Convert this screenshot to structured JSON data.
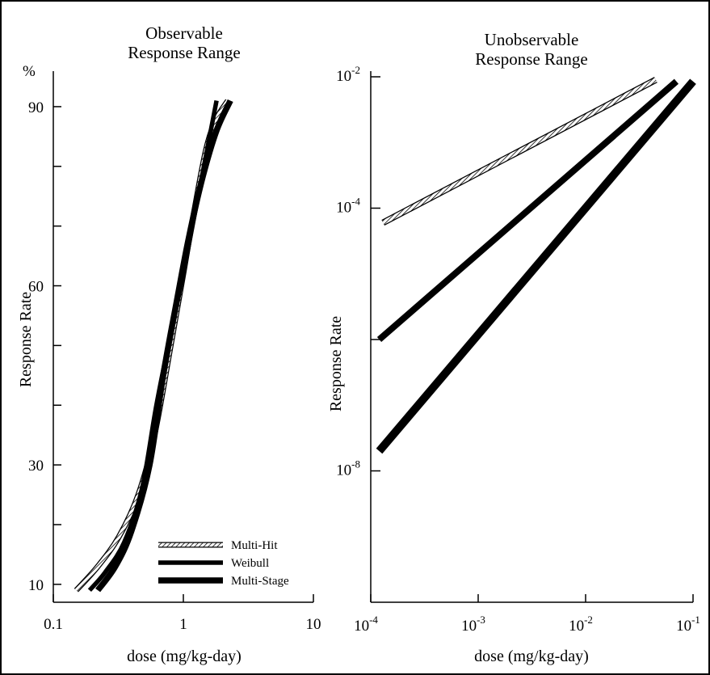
{
  "chart_data": [
    {
      "type": "line",
      "title": "Observable Response Range",
      "title_lines": [
        "Observable",
        "Response Range"
      ],
      "xlabel": "dose (mg/kg-day)",
      "ylabel": "Response Rate",
      "yunit": "%",
      "xscale": "log",
      "xlim": [
        0.1,
        10
      ],
      "ylim": [
        7,
        95
      ],
      "x_ticks": [
        "0.1",
        "1",
        "10"
      ],
      "y_ticks": [
        "10",
        "30",
        "60",
        "90"
      ],
      "legend_position": "bottom-right",
      "series": [
        {
          "name": "Multi-Hit",
          "style": "hatched",
          "points": [
            [
              0.15,
              9
            ],
            [
              0.22,
              13
            ],
            [
              0.32,
              18
            ],
            [
              0.45,
              25
            ],
            [
              0.6,
              35
            ],
            [
              0.8,
              50
            ],
            [
              1.0,
              62
            ],
            [
              1.2,
              72
            ],
            [
              1.5,
              83
            ],
            [
              1.8,
              88
            ],
            [
              2.2,
              91
            ]
          ]
        },
        {
          "name": "Weibull",
          "style": "solid",
          "points": [
            [
              0.19,
              9
            ],
            [
              0.25,
              12
            ],
            [
              0.35,
              17
            ],
            [
              0.48,
              26
            ],
            [
              0.62,
              40
            ],
            [
              0.8,
              52
            ],
            [
              1.0,
              62
            ],
            [
              1.3,
              75
            ],
            [
              1.8,
              91
            ]
          ]
        },
        {
          "name": "Multi-Stage",
          "style": "solid-heavy",
          "points": [
            [
              0.22,
              9
            ],
            [
              0.3,
              13
            ],
            [
              0.4,
              19
            ],
            [
              0.55,
              30
            ],
            [
              0.7,
              45
            ],
            [
              0.9,
              58
            ],
            [
              1.1,
              68
            ],
            [
              1.4,
              78
            ],
            [
              1.8,
              86
            ],
            [
              2.3,
              91
            ]
          ]
        }
      ],
      "legend": [
        "Multi-Hit",
        "Weibull",
        "Multi-Stage"
      ]
    },
    {
      "type": "line",
      "title": "Unobservable Response Range",
      "title_lines": [
        "Unobservable",
        "Response Range"
      ],
      "xlabel": "dose (mg/kg-day)",
      "ylabel": "Response Rate",
      "xscale": "log",
      "yscale": "log",
      "xlim": [
        0.0001,
        0.1
      ],
      "ylim": [
        1e-10,
        0.01
      ],
      "x_ticks": [
        {
          "base": "10",
          "exp": "-4"
        },
        {
          "base": "10",
          "exp": "-3"
        },
        {
          "base": "10",
          "exp": "-2"
        },
        {
          "base": "10",
          "exp": "-1"
        }
      ],
      "y_ticks": [
        {
          "base": "10",
          "exp": "-2"
        },
        {
          "base": "10",
          "exp": "-4"
        },
        {
          "base": "10",
          "exp": "-8"
        }
      ],
      "series": [
        {
          "name": "Multi-Hit",
          "style": "hatched",
          "points": [
            [
              0.00013,
              6e-05
            ],
            [
              0.045,
              0.009
            ]
          ]
        },
        {
          "name": "Weibull",
          "style": "solid",
          "points": [
            [
              0.00012,
              1e-06
            ],
            [
              0.07,
              0.0085
            ]
          ]
        },
        {
          "name": "Multi-Stage",
          "style": "solid-heavy",
          "points": [
            [
              0.00012,
              2e-08
            ],
            [
              0.1,
              0.0085
            ]
          ]
        }
      ]
    }
  ]
}
